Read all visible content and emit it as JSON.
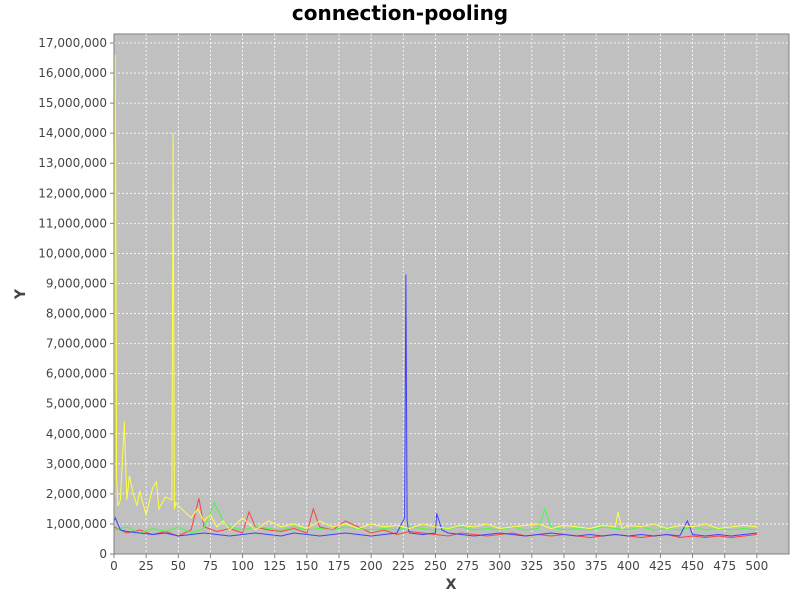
{
  "chart_data": {
    "type": "line",
    "title": "connection-pooling",
    "xlabel": "X",
    "ylabel": "Y",
    "xlim": [
      0,
      525
    ],
    "ylim": [
      0,
      17300000
    ],
    "x_ticks": [
      0,
      25,
      50,
      75,
      100,
      125,
      150,
      175,
      200,
      225,
      250,
      275,
      300,
      325,
      350,
      375,
      400,
      425,
      450,
      475,
      500
    ],
    "y_ticks": [
      0,
      1000000,
      2000000,
      3000000,
      4000000,
      5000000,
      6000000,
      7000000,
      8000000,
      9000000,
      10000000,
      11000000,
      12000000,
      13000000,
      14000000,
      15000000,
      16000000,
      17000000
    ],
    "x_tick_labels": [
      "0",
      "25",
      "50",
      "75",
      "100",
      "125",
      "150",
      "175",
      "200",
      "225",
      "250",
      "275",
      "300",
      "325",
      "350",
      "375",
      "400",
      "425",
      "450",
      "475",
      "500"
    ],
    "y_tick_labels": [
      "0",
      "1,000,000",
      "2,000,000",
      "3,000,000",
      "4,000,000",
      "5,000,000",
      "6,000,000",
      "7,000,000",
      "8,000,000",
      "9,000,000",
      "10,000,000",
      "11,000,000",
      "12,000,000",
      "13,000,000",
      "14,000,000",
      "15,000,000",
      "16,000,000",
      "17,000,000"
    ],
    "grid": true,
    "background_color": "#c0c0c0",
    "series": [
      {
        "color": "#ff4040",
        "x": [
          0,
          10,
          20,
          30,
          40,
          50,
          60,
          66,
          70,
          80,
          90,
          100,
          105,
          110,
          120,
          130,
          140,
          150,
          155,
          160,
          170,
          180,
          190,
          200,
          210,
          220,
          230,
          240,
          250,
          260,
          270,
          280,
          290,
          300,
          310,
          320,
          330,
          340,
          350,
          360,
          370,
          380,
          390,
          400,
          410,
          420,
          430,
          440,
          450,
          460,
          470,
          480,
          490,
          500
        ],
        "y": [
          900000,
          700000,
          800000,
          650000,
          750000,
          600000,
          800000,
          1850000,
          900000,
          750000,
          850000,
          700000,
          1400000,
          900000,
          800000,
          750000,
          850000,
          700000,
          1500000,
          900000,
          800000,
          1100000,
          900000,
          700000,
          800000,
          650000,
          750000,
          700000,
          650000,
          600000,
          700000,
          650000,
          600000,
          650000,
          700000,
          600000,
          650000,
          600000,
          650000,
          600000,
          550000,
          600000,
          650000,
          600000,
          550000,
          600000,
          650000,
          550000,
          600000,
          550000,
          600000,
          550000,
          600000,
          650000
        ]
      },
      {
        "color": "#40ff40",
        "x": [
          0,
          10,
          20,
          30,
          40,
          50,
          60,
          70,
          78,
          85,
          90,
          100,
          110,
          120,
          130,
          140,
          150,
          160,
          170,
          180,
          190,
          200,
          210,
          220,
          230,
          240,
          250,
          260,
          270,
          280,
          290,
          300,
          310,
          320,
          330,
          335,
          340,
          350,
          360,
          370,
          380,
          390,
          400,
          410,
          420,
          430,
          440,
          450,
          460,
          470,
          480,
          490,
          500
        ],
        "y": [
          800000,
          900000,
          700000,
          850000,
          750000,
          900000,
          700000,
          850000,
          1700000,
          1100000,
          900000,
          800000,
          900000,
          850000,
          800000,
          900000,
          800000,
          850000,
          800000,
          900000,
          850000,
          800000,
          850000,
          800000,
          900000,
          850000,
          800000,
          850000,
          900000,
          800000,
          850000,
          800000,
          900000,
          800000,
          850000,
          1500000,
          900000,
          800000,
          850000,
          800000,
          900000,
          850000,
          800000,
          900000,
          800000,
          850000,
          800000,
          900000,
          800000,
          850000,
          800000,
          850000,
          800000
        ]
      },
      {
        "color": "#4040ff",
        "x": [
          0,
          1,
          5,
          10,
          20,
          30,
          40,
          50,
          60,
          70,
          80,
          90,
          100,
          110,
          120,
          130,
          140,
          150,
          160,
          170,
          180,
          190,
          200,
          210,
          220,
          226,
          227,
          228,
          229,
          230,
          240,
          250,
          251,
          255,
          260,
          270,
          280,
          290,
          300,
          310,
          320,
          330,
          340,
          350,
          360,
          370,
          380,
          390,
          400,
          410,
          420,
          430,
          440,
          446,
          450,
          460,
          470,
          480,
          490,
          500
        ],
        "y": [
          1100000,
          1200000,
          800000,
          750000,
          700000,
          650000,
          700000,
          600000,
          650000,
          700000,
          650000,
          600000,
          650000,
          700000,
          650000,
          600000,
          700000,
          650000,
          600000,
          650000,
          700000,
          650000,
          600000,
          650000,
          700000,
          1200000,
          9300000,
          1100000,
          800000,
          700000,
          650000,
          700000,
          1350000,
          800000,
          700000,
          650000,
          600000,
          650000,
          700000,
          650000,
          600000,
          650000,
          700000,
          650000,
          600000,
          650000,
          600000,
          650000,
          600000,
          650000,
          600000,
          650000,
          600000,
          1100000,
          650000,
          600000,
          650000,
          600000,
          650000,
          700000
        ]
      },
      {
        "color": "#ffff40",
        "x": [
          0,
          1,
          2,
          3,
          5,
          7,
          8,
          10,
          12,
          15,
          18,
          20,
          25,
          30,
          33,
          35,
          40,
          45,
          46,
          47,
          48,
          50,
          55,
          60,
          65,
          70,
          75,
          80,
          85,
          90,
          95,
          100,
          110,
          120,
          130,
          140,
          150,
          160,
          170,
          180,
          190,
          200,
          210,
          220,
          230,
          240,
          250,
          260,
          270,
          280,
          290,
          300,
          310,
          320,
          330,
          340,
          350,
          360,
          370,
          380,
          390,
          392,
          395,
          400,
          410,
          420,
          430,
          440,
          450,
          460,
          470,
          480,
          490,
          500
        ],
        "y": [
          900000,
          16600000,
          2500000,
          1600000,
          1800000,
          3500000,
          4400000,
          1800000,
          2600000,
          2000000,
          1600000,
          2100000,
          1300000,
          2200000,
          2400000,
          1500000,
          1900000,
          1800000,
          14000000,
          1500000,
          1700000,
          1600000,
          1400000,
          1200000,
          1500000,
          1100000,
          1300000,
          900000,
          1100000,
          800000,
          1000000,
          1200000,
          800000,
          1100000,
          900000,
          1000000,
          850000,
          1100000,
          900000,
          1000000,
          850000,
          1000000,
          900000,
          950000,
          850000,
          1000000,
          900000,
          850000,
          950000,
          900000,
          1000000,
          850000,
          900000,
          950000,
          1000000,
          850000,
          950000,
          900000,
          850000,
          950000,
          900000,
          1400000,
          850000,
          950000,
          900000,
          1000000,
          850000,
          950000,
          900000,
          1000000,
          850000,
          900000,
          950000,
          900000
        ]
      }
    ]
  }
}
